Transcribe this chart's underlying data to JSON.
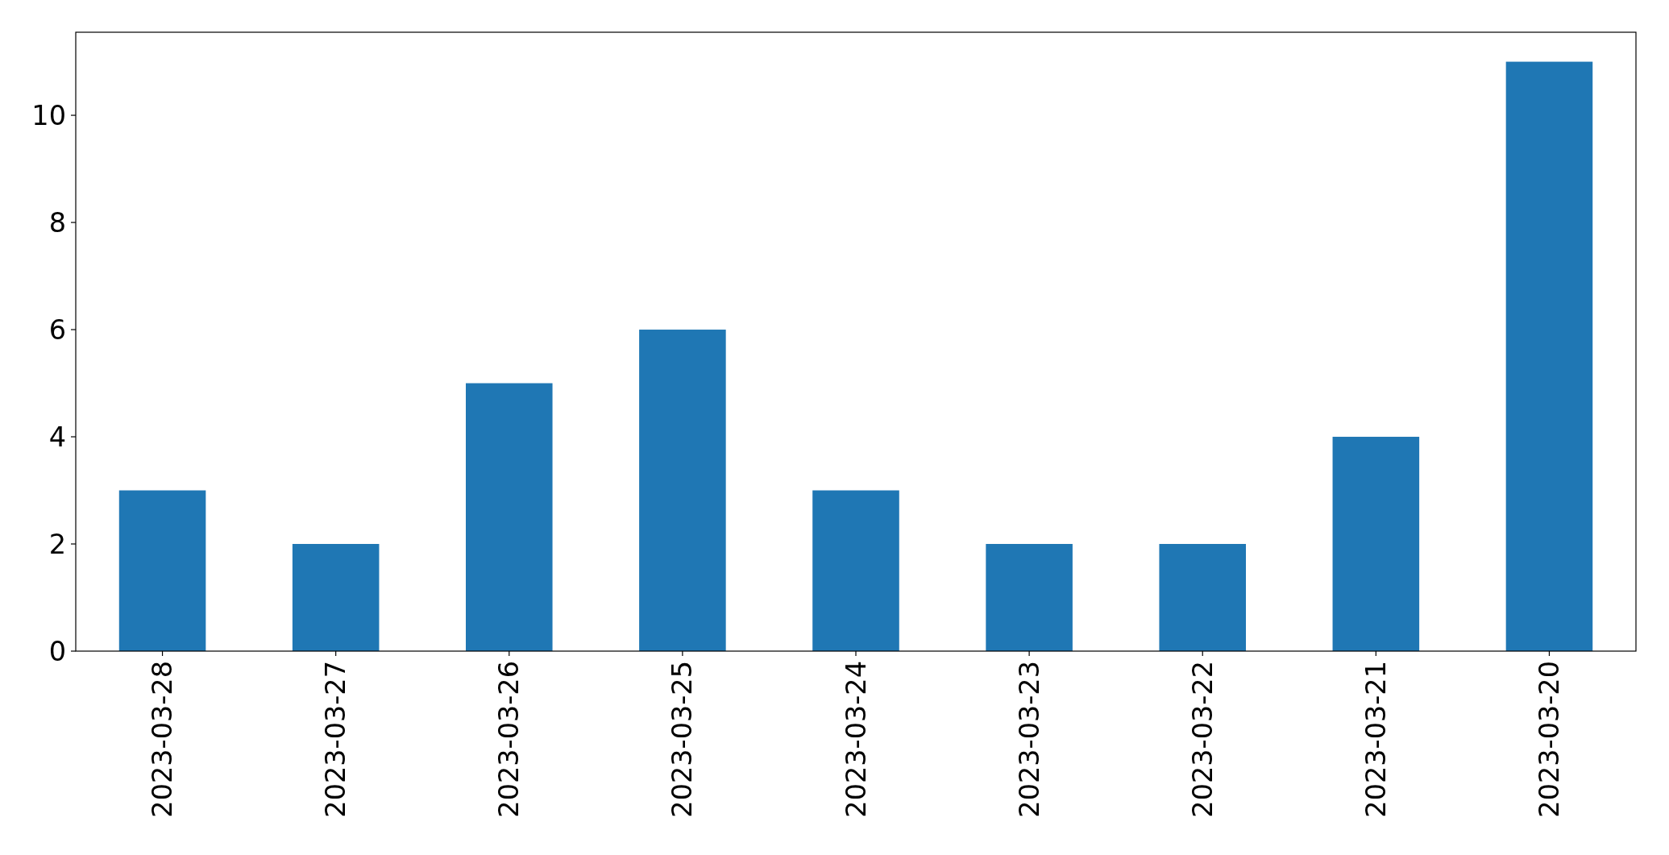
{
  "chart_data": {
    "type": "bar",
    "categories": [
      "2023-03-28",
      "2023-03-27",
      "2023-03-26",
      "2023-03-25",
      "2023-03-24",
      "2023-03-23",
      "2023-03-22",
      "2023-03-21",
      "2023-03-20"
    ],
    "values": [
      3,
      2,
      5,
      6,
      3,
      2,
      2,
      4,
      11
    ],
    "color": "#1f77b4",
    "ylim": [
      0,
      11.55
    ],
    "yticks": [
      0,
      2,
      4,
      6,
      8,
      10
    ]
  }
}
